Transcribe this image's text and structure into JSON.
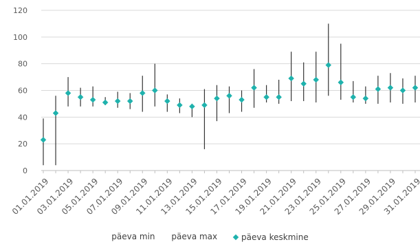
{
  "chart_data": {
    "type": "scatter",
    "title": "",
    "xlabel": "",
    "ylabel": "",
    "ylim": [
      0,
      120
    ],
    "yticks": [
      0,
      20,
      40,
      60,
      80,
      100,
      120
    ],
    "grid": true,
    "legend_position": "bottom",
    "colors": {
      "avg": "#1fb2ad",
      "range": "#333333",
      "grid": "#d9d9d9",
      "text": "#595959"
    },
    "x": [
      "01.01.2019",
      "02.01.2019",
      "03.01.2019",
      "04.01.2019",
      "05.01.2019",
      "06.01.2019",
      "07.01.2019",
      "08.01.2019",
      "09.01.2019",
      "10.01.2019",
      "11.01.2019",
      "12.01.2019",
      "13.01.2019",
      "14.01.2019",
      "15.01.2019",
      "16.01.2019",
      "17.01.2019",
      "18.01.2019",
      "19.01.2019",
      "20.01.2019",
      "21.01.2019",
      "22.01.2019",
      "23.01.2019",
      "24.01.2019",
      "25.01.2019",
      "26.01.2019",
      "27.01.2019",
      "28.01.2019",
      "29.01.2019",
      "30.01.2019",
      "31.01.2019"
    ],
    "x_tick_labels": [
      "01.01.2019",
      "03.01.2019",
      "05.01.2019",
      "07.01.2019",
      "09.01.2019",
      "11.01.2019",
      "13.01.2019",
      "15.01.2019",
      "17.01.2019",
      "19.01.2019",
      "21.01.2019",
      "23.01.2019",
      "25.01.2019",
      "27.01.2019",
      "29.01.2019",
      "31.01.2019"
    ],
    "series": [
      {
        "name": "päeva min",
        "values": [
          4,
          4,
          48,
          48,
          48,
          49,
          47,
          46,
          44,
          48,
          44,
          43,
          40,
          16,
          37,
          43,
          44,
          47,
          51,
          50,
          52,
          52,
          51,
          56,
          53,
          51,
          50,
          50,
          51,
          50,
          51
        ]
      },
      {
        "name": "päeva max",
        "values": [
          39,
          56,
          70,
          62,
          63,
          55,
          59,
          58,
          71,
          80,
          57,
          54,
          50,
          61,
          64,
          63,
          60,
          76,
          64,
          68,
          89,
          81,
          89,
          110,
          95,
          67,
          63,
          71,
          73,
          69,
          71
        ]
      },
      {
        "name": "päeva keskmine",
        "values": [
          23,
          43,
          58,
          55,
          53,
          51,
          52,
          52,
          58,
          60,
          52,
          49,
          48,
          49,
          54,
          56,
          53,
          62,
          55,
          55,
          69,
          65,
          68,
          79,
          66,
          55,
          54,
          61,
          62,
          60,
          62
        ]
      }
    ]
  }
}
